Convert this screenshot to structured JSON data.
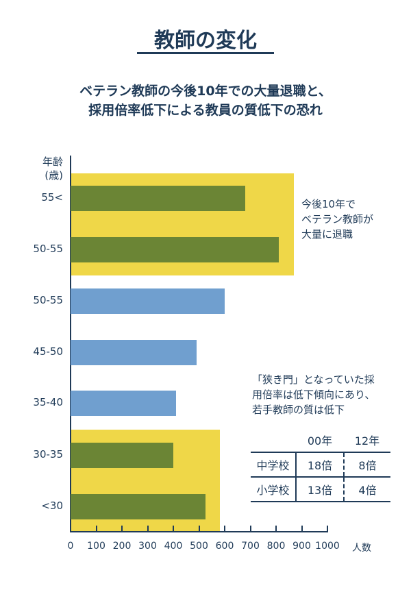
{
  "title": "教師の変化",
  "subtitle": [
    "ベテラン教師の今後10年での大量退職と、",
    "採用倍率低下による教員の質低下の恐れ"
  ],
  "colors": {
    "green": "#6b8535",
    "blue": "#709fcf",
    "yellow": "#efd748",
    "text": "#1f3a57"
  },
  "chart_data": {
    "type": "bar",
    "orientation": "horizontal",
    "ylabel": [
      "年齢",
      "(歳)"
    ],
    "xlabel": "人数",
    "categories": [
      "55<",
      "50-55",
      "50-55",
      "45-50",
      "35-40",
      "30-35",
      "<30"
    ],
    "values": [
      680,
      810,
      600,
      490,
      410,
      400,
      525
    ],
    "bar_colors": [
      "green",
      "green",
      "blue",
      "blue",
      "blue",
      "green",
      "green"
    ],
    "xlim": [
      0,
      1000
    ],
    "xticks": [
      "0",
      "100",
      "200",
      "300",
      "400",
      "500",
      "600",
      "700",
      "800",
      "900",
      "1000"
    ],
    "highlights": [
      {
        "categories": [
          "55<",
          "50-55"
        ],
        "extent": 870
      },
      {
        "categories": [
          "30-35",
          "<30"
        ],
        "extent": 580
      }
    ]
  },
  "note1": [
    "今後10年で",
    "ベテラン教師が",
    "大量に退職"
  ],
  "note2": [
    "「狭き門」となっていた採",
    "用倍率は低下傾向にあり、",
    "若手教師の質は低下"
  ],
  "table": {
    "headers": [
      "",
      "00年",
      "12年"
    ],
    "rows": [
      [
        "中学校",
        "18倍",
        "8倍"
      ],
      [
        "小学校",
        "13倍",
        "4倍"
      ]
    ]
  }
}
